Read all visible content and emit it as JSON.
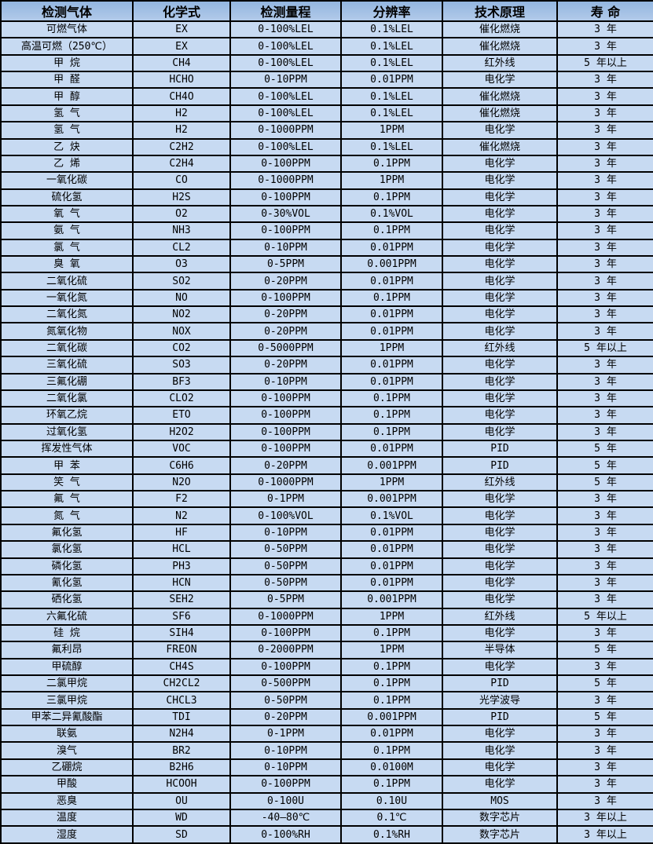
{
  "table": {
    "title": "gas-detector-sensor-specifications",
    "colors": {
      "header_bg_top": "#93b6e0",
      "header_bg_bottom": "#b2cae9",
      "row_bg": "#c7daf2",
      "border": "#000000",
      "text": "#000000"
    },
    "columns": [
      "检测气体",
      "化学式",
      "检测量程",
      "分辨率",
      "技术原理",
      "寿 命"
    ],
    "rows": [
      [
        "可燃气体",
        "EX",
        "0-100%LEL",
        "0.1%LEL",
        "催化燃烧",
        "3 年"
      ],
      [
        "高温可燃（250℃）",
        "EX",
        "0-100%LEL",
        "0.1%LEL",
        "催化燃烧",
        "3 年"
      ],
      [
        "甲 烷",
        "CH4",
        "0-100%LEL",
        "0.1%LEL",
        "红外线",
        "5 年以上"
      ],
      [
        "甲 醛",
        "HCHO",
        "0-10PPM",
        "0.01PPM",
        "电化学",
        "3 年"
      ],
      [
        "甲 醇",
        "CH4O",
        "0-100%LEL",
        "0.1%LEL",
        "催化燃烧",
        "3 年"
      ],
      [
        "氢 气",
        "H2",
        "0-100%LEL",
        "0.1%LEL",
        "催化燃烧",
        "3 年"
      ],
      [
        "氢 气",
        "H2",
        "0-1000PPM",
        "1PPM",
        "电化学",
        "3 年"
      ],
      [
        "乙 炔",
        "C2H2",
        "0-100%LEL",
        "0.1%LEL",
        "催化燃烧",
        "3 年"
      ],
      [
        "乙 烯",
        "C2H4",
        "0-100PPM",
        "0.1PPM",
        "电化学",
        "3 年"
      ],
      [
        "一氧化碳",
        "CO",
        "0-1000PPM",
        "1PPM",
        "电化学",
        "3 年"
      ],
      [
        "硫化氢",
        "H2S",
        "0-100PPM",
        "0.1PPM",
        "电化学",
        "3 年"
      ],
      [
        "氧 气",
        "O2",
        "0-30%VOL",
        "0.1%VOL",
        "电化学",
        "3 年"
      ],
      [
        "氨 气",
        "NH3",
        "0-100PPM",
        "0.1PPM",
        "电化学",
        "3 年"
      ],
      [
        "氯 气",
        "CL2",
        "0-10PPM",
        "0.01PPM",
        "电化学",
        "3 年"
      ],
      [
        "臭 氧",
        "O3",
        "0-5PPM",
        "0.001PPM",
        "电化学",
        "3 年"
      ],
      [
        "二氧化硫",
        "SO2",
        "0-20PPM",
        "0.01PPM",
        "电化学",
        "3 年"
      ],
      [
        "一氧化氮",
        "NO",
        "0-100PPM",
        "0.1PPM",
        "电化学",
        "3 年"
      ],
      [
        "二氧化氮",
        "NO2",
        "0-20PPM",
        "0.01PPM",
        "电化学",
        "3 年"
      ],
      [
        "氮氧化物",
        "NOX",
        "0-20PPM",
        "0.01PPM",
        "电化学",
        "3 年"
      ],
      [
        "二氧化碳",
        "CO2",
        "0-5000PPM",
        "1PPM",
        "红外线",
        "5 年以上"
      ],
      [
        "三氧化硫",
        "SO3",
        "0-20PPM",
        "0.01PPM",
        "电化学",
        "3 年"
      ],
      [
        "三氟化硼",
        "BF3",
        "0-10PPM",
        "0.01PPM",
        "电化学",
        "3 年"
      ],
      [
        "二氧化氯",
        "CLO2",
        "0-100PPM",
        "0.1PPM",
        "电化学",
        "3 年"
      ],
      [
        "环氧乙烷",
        "ETO",
        "0-100PPM",
        "0.1PPM",
        "电化学",
        "3 年"
      ],
      [
        "过氧化氢",
        "H2O2",
        "0-100PPM",
        "0.1PPM",
        "电化学",
        "3 年"
      ],
      [
        "挥发性气体",
        "VOC",
        "0-100PPM",
        "0.01PPM",
        "PID",
        "5 年"
      ],
      [
        "甲 苯",
        "C6H6",
        "0-20PPM",
        "0.001PPM",
        "PID",
        "5 年"
      ],
      [
        "笑 气",
        "N2O",
        "0-1000PPM",
        "1PPM",
        "红外线",
        "5 年"
      ],
      [
        "氟 气",
        "F2",
        "0-1PPM",
        "0.001PPM",
        "电化学",
        "3 年"
      ],
      [
        "氮 气",
        "N2",
        "0-100%VOL",
        "0.1%VOL",
        "电化学",
        "3 年"
      ],
      [
        "氟化氢",
        "HF",
        "0-10PPM",
        "0.01PPM",
        "电化学",
        "3 年"
      ],
      [
        "氯化氢",
        "HCL",
        "0-50PPM",
        "0.01PPM",
        "电化学",
        "3 年"
      ],
      [
        "磷化氢",
        "PH3",
        "0-50PPM",
        "0.01PPM",
        "电化学",
        "3 年"
      ],
      [
        "氰化氢",
        "HCN",
        "0-50PPM",
        "0.01PPM",
        "电化学",
        "3 年"
      ],
      [
        "硒化氢",
        "SEH2",
        "0-5PPM",
        "0.001PPM",
        "电化学",
        "3 年"
      ],
      [
        "六氟化硫",
        "SF6",
        "0-1000PPM",
        "1PPM",
        "红外线",
        "5 年以上"
      ],
      [
        "硅 烷",
        "SIH4",
        "0-100PPM",
        "0.1PPM",
        "电化学",
        "3 年"
      ],
      [
        "氟利昂",
        "FREON",
        "0-2000PPM",
        "1PPM",
        "半导体",
        "5 年"
      ],
      [
        "甲硫醇",
        "CH4S",
        "0-100PPM",
        "0.1PPM",
        "电化学",
        "3 年"
      ],
      [
        "二氯甲烷",
        "CH2CL2",
        "0-500PPM",
        "0.1PPM",
        "PID",
        "5 年"
      ],
      [
        "三氯甲烷",
        "CHCL3",
        "0-50PPM",
        "0.1PPM",
        "光学波导",
        "3 年"
      ],
      [
        "甲苯二异氰酸酯",
        "TDI",
        "0-20PPM",
        "0.001PPM",
        "PID",
        "5 年"
      ],
      [
        "联氨",
        "N2H4",
        "0-1PPM",
        "0.01PPM",
        "电化学",
        "3 年"
      ],
      [
        "溴气",
        "BR2",
        "0-10PPM",
        "0.1PPM",
        "电化学",
        "3 年"
      ],
      [
        "乙硼烷",
        "B2H6",
        "0-10PPM",
        "0.0100M",
        "电化学",
        "3 年"
      ],
      [
        "甲酸",
        "HCOOH",
        "0-100PPM",
        "0.1PPM",
        "电化学",
        "3 年"
      ],
      [
        "恶臭",
        "OU",
        "0-100U",
        "0.10U",
        "MOS",
        "3 年"
      ],
      [
        "温度",
        "WD",
        "-40—80℃",
        "0.1℃",
        "数字芯片",
        "3 年以上"
      ],
      [
        "湿度",
        "SD",
        "0-100%RH",
        "0.1%RH",
        "数字芯片",
        "3 年以上"
      ]
    ]
  }
}
